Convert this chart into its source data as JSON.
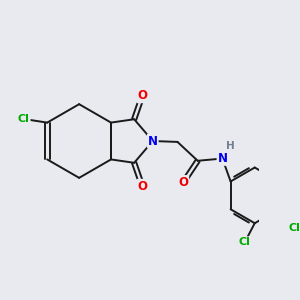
{
  "bg_color": "#e8eaf0",
  "bond_color": "#1a1a1a",
  "bond_width": 1.4,
  "atom_colors": {
    "C": "#1a1a1a",
    "N": "#0000ee",
    "O": "#ee0000",
    "Cl": "#00aa00",
    "H": "#708090"
  }
}
